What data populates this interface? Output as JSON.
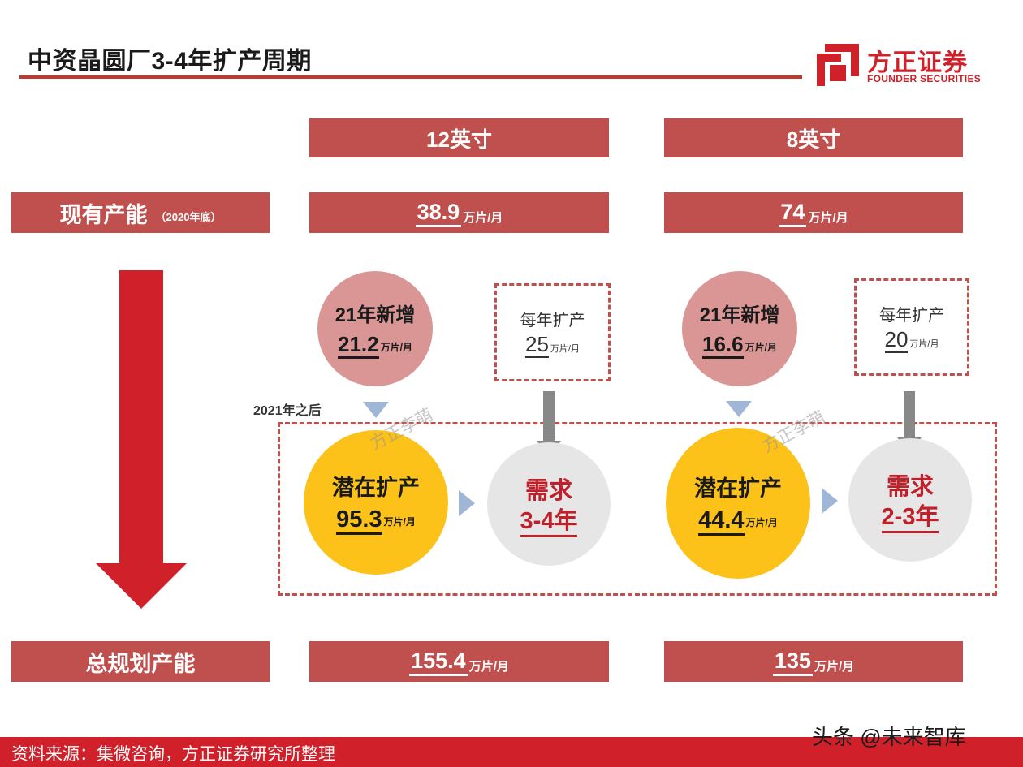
{
  "header": {
    "title": "中资晶圆厂3-4年扩产周期",
    "logo_cn": "方正证券",
    "logo_en": "FOUNDER SECURITIES"
  },
  "columns": [
    {
      "head": "12英寸",
      "current": {
        "value": "38.9",
        "unit": "万片/月"
      },
      "new21": {
        "title": "21年新增",
        "value": "21.2",
        "unit": "万片/月"
      },
      "annual": {
        "title": "每年扩产",
        "value": "25",
        "unit": "万片/月"
      },
      "potential": {
        "title": "潜在扩产",
        "value": "95.3",
        "unit": "万片/月"
      },
      "need": {
        "title": "需求",
        "value": "3-4年"
      },
      "total": {
        "value": "155.4",
        "unit": "万片/月"
      }
    },
    {
      "head": "8英寸",
      "current": {
        "value": "74",
        "unit": "万片/月"
      },
      "new21": {
        "title": "21年新增",
        "value": "16.6",
        "unit": "万片/月"
      },
      "annual": {
        "title": "每年扩产",
        "value": "20",
        "unit": "万片/月"
      },
      "potential": {
        "title": "潜在扩产",
        "value": "44.4",
        "unit": "万片/月"
      },
      "need": {
        "title": "需求",
        "value": "2-3年"
      },
      "total": {
        "value": "135",
        "unit": "万片/月"
      }
    }
  ],
  "rows": {
    "current_label": "现有产能",
    "current_sub": "（2020年底）",
    "total_label": "总规划产能"
  },
  "after_label": "2021年之后",
  "watermark": "方正李萌",
  "footer": {
    "source": "资料来源：集微咨询，方正证券研究所整理",
    "brand": "头条 @未来智库"
  },
  "colors": {
    "bar_red": "#c0504d",
    "accent_red": "#d0202a",
    "pink": "#d99694",
    "yellow": "#fcc21a",
    "gray_circle": "#e6e6e6",
    "connector_blue": "#9fb6d6"
  }
}
